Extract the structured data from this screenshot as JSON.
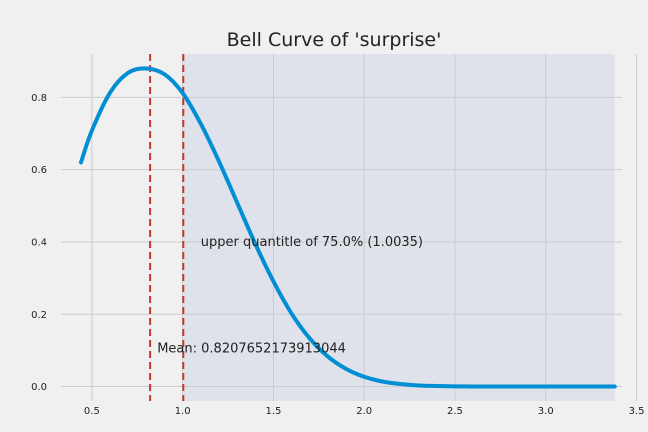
{
  "chart_data": {
    "type": "line",
    "title": "Bell Curve of 'surprise'",
    "xlabel": "",
    "ylabel": "",
    "xlim": [
      0.33,
      3.42
    ],
    "ylim": [
      -0.04,
      0.92
    ],
    "xticks": [
      0.5,
      1.0,
      1.5,
      2.0,
      2.5,
      3.0,
      3.5
    ],
    "xtick_labels": [
      "0.5",
      "1.0",
      "1.5",
      "2.0",
      "2.5",
      "3.0",
      "3.5"
    ],
    "yticks": [
      0.0,
      0.2,
      0.4,
      0.6,
      0.8
    ],
    "ytick_labels": [
      "0.0",
      "0.2",
      "0.4",
      "0.6",
      "0.8"
    ],
    "grid": true,
    "series": [
      {
        "color": "#008fd5",
        "x": [
          0.44,
          0.5,
          0.6,
          0.7,
          0.8,
          0.9,
          1.0,
          1.1,
          1.2,
          1.3,
          1.4,
          1.5,
          1.6,
          1.7,
          1.8,
          1.9,
          2.0,
          2.1,
          2.2,
          2.3,
          2.4,
          2.5,
          2.6,
          2.8,
          3.0,
          3.2,
          3.38
        ],
        "y": [
          0.62,
          0.708,
          0.813,
          0.868,
          0.88,
          0.864,
          0.812,
          0.727,
          0.623,
          0.509,
          0.395,
          0.291,
          0.202,
          0.133,
          0.083,
          0.049,
          0.027,
          0.014,
          0.007,
          0.003,
          0.0015,
          0.0006,
          0.0002,
          0.0,
          0.0,
          0.0,
          0.0
        ]
      }
    ],
    "vlines": [
      {
        "x": 0.8208,
        "color": "#c0392b",
        "style": "dashed"
      },
      {
        "x": 1.0035,
        "color": "#c0392b",
        "style": "dashed"
      }
    ],
    "shaded_region": {
      "x_start": 1.0035,
      "x_end": 3.38,
      "color": "#dfe2ea"
    },
    "annotations": [
      {
        "text": "upper quantitle of 75.0% (1.0035)",
        "x": 1.1,
        "y": 0.4
      },
      {
        "text": "Mean: 0.8207652173913044",
        "x": 0.86,
        "y": 0.105
      }
    ]
  }
}
